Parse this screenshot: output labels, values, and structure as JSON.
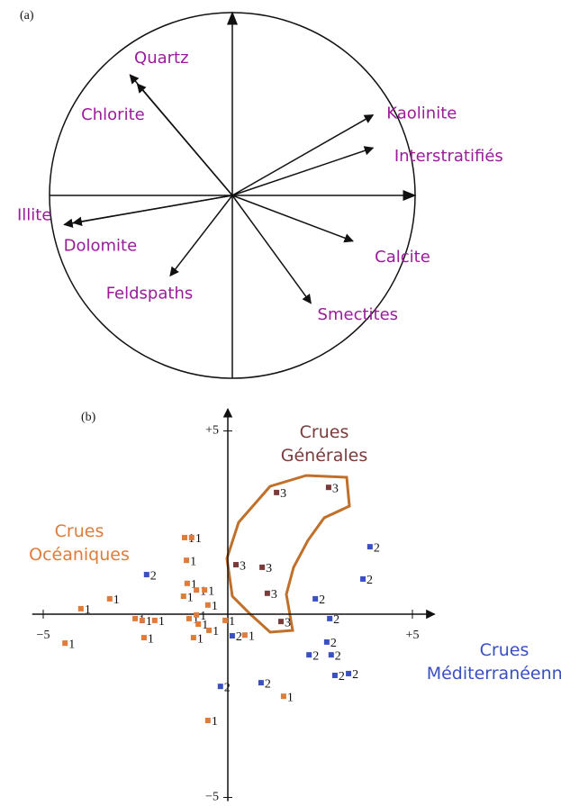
{
  "chart_data": [
    {
      "type": "vector",
      "label": "(a)",
      "color": "#9b1b9b",
      "xlim": [
        -1,
        1
      ],
      "ylim": [
        -1,
        1
      ],
      "categories": [
        "Quartz",
        "Chlorite",
        "Kaolinite",
        "Interstratifiés",
        "Illite",
        "Dolomite",
        "Calcite",
        "Smectites",
        "Feldspaths"
      ],
      "x": [
        -0.56,
        -0.52,
        0.77,
        0.77,
        -0.92,
        -0.87,
        0.66,
        0.43,
        -0.34
      ],
      "y": [
        0.66,
        0.61,
        0.44,
        0.26,
        -0.16,
        -0.15,
        -0.25,
        -0.59,
        -0.44
      ]
    },
    {
      "type": "scatter",
      "label": "(b)",
      "xlim": [
        -5.3,
        5.6
      ],
      "ylim": [
        -5.1,
        5.6
      ],
      "xticks": [
        {
          "value": -5,
          "label": "−5"
        },
        {
          "value": 5,
          "label": "+5"
        }
      ],
      "yticks": [
        {
          "value": 5,
          "label": "+5"
        },
        {
          "value": -5,
          "label": "−5"
        }
      ],
      "annotations": [
        {
          "text": "Crues\nGénérales",
          "color": "#7a3b3b"
        },
        {
          "text": "Crues\nOcéaniques",
          "color": "#e07b39"
        },
        {
          "text": "Crues\nMéditerranéennes",
          "color": "#3a4fc0"
        }
      ],
      "series": [
        {
          "name": "1",
          "color": "#e07b39",
          "x": [
            -1.17,
            -0.98,
            -1.12,
            -1.1,
            -0.85,
            -0.63,
            -1.2,
            -0.54,
            -3.2,
            -3.98,
            -2.51,
            -2.32,
            -1.98,
            -1.05,
            -0.85,
            -0.8,
            -0.07,
            -2.27,
            -0.93,
            -0.51,
            0.46,
            -4.41,
            1.51,
            -0.54
          ],
          "values": [
            2.09,
            2.09,
            1.47,
            0.84,
            0.66,
            0.66,
            0.49,
            0.25,
            0.42,
            0.15,
            -0.12,
            -0.17,
            -0.17,
            -0.12,
            -0.02,
            -0.27,
            -0.17,
            -0.64,
            -0.64,
            -0.44,
            -0.57,
            -0.79,
            -2.24,
            -2.9
          ]
        },
        {
          "name": "2",
          "color": "#3a4fc0",
          "x": [
            -2.2,
            3.85,
            3.66,
            2.37,
            2.76,
            2.68,
            2.8,
            2.2,
            2.9,
            3.27,
            0.12,
            0.9,
            -0.2
          ],
          "values": [
            1.08,
            1.84,
            0.96,
            0.42,
            -0.12,
            -0.76,
            -1.11,
            -1.11,
            -1.67,
            -1.62,
            -0.59,
            -1.87,
            -1.97
          ]
        },
        {
          "name": "3",
          "color": "#7a3b3b",
          "x": [
            1.32,
            2.73,
            0.22,
            0.93,
            1.07,
            1.44
          ],
          "values": [
            3.32,
            3.46,
            1.35,
            1.28,
            0.57,
            -0.2
          ]
        }
      ]
    }
  ]
}
